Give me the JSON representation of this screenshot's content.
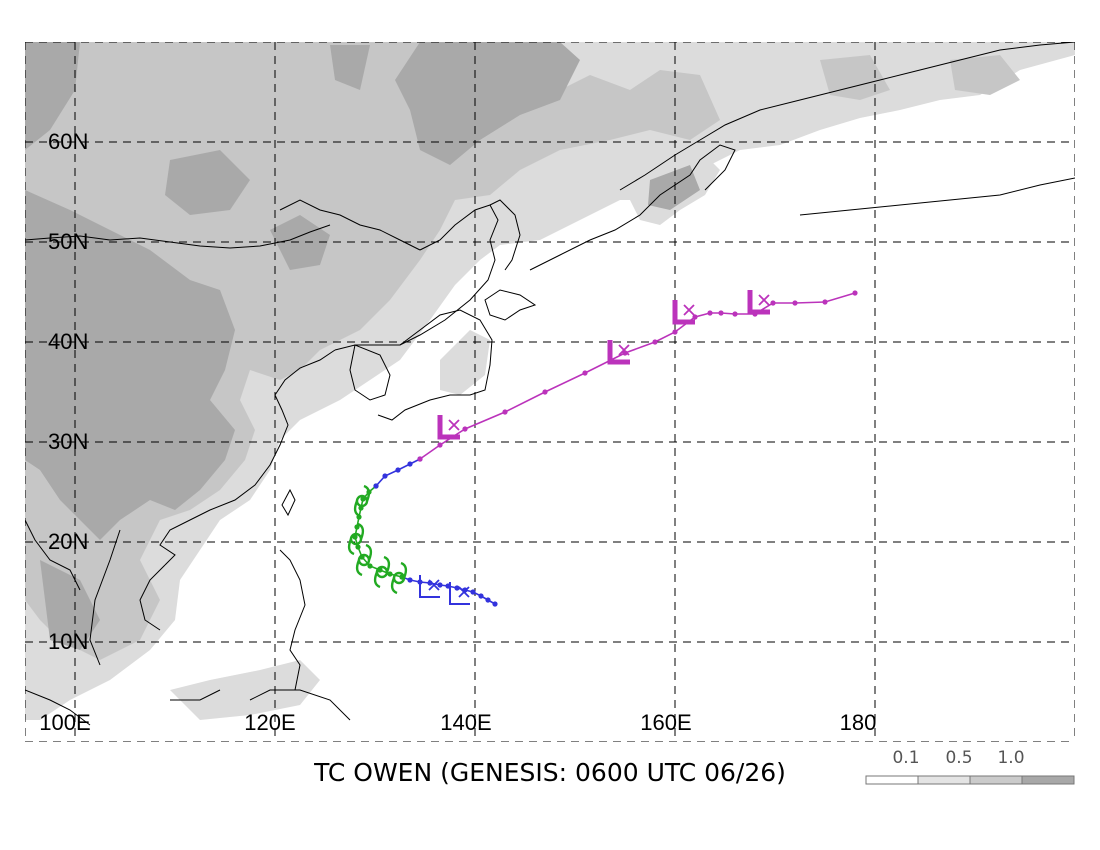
{
  "map": {
    "region": "Western North Pacific",
    "lat_labels": [
      "60N",
      "50N",
      "40N",
      "30N",
      "20N",
      "10N"
    ],
    "lon_labels": [
      "100E",
      "120E",
      "140E",
      "160E",
      "180"
    ],
    "caption": "TC OWEN (GENESIS: 0600 UTC 06/26)",
    "legend": {
      "labels": [
        "0.1",
        "0.5",
        "1.0"
      ],
      "colors": [
        "#ffffff",
        "#e4e4e4",
        "#cbcbcb",
        "#a8a8a8"
      ]
    },
    "track_colors": {
      "genesis": "#3333dd",
      "tropical": "#22aa22",
      "extratropical": "#bb33bb"
    },
    "track": {
      "early_blue": [
        [
          142.0,
          13.8
        ],
        [
          141.3,
          14.2
        ],
        [
          140.6,
          14.6
        ],
        [
          139.8,
          15.0
        ],
        [
          139.0,
          15.2
        ],
        [
          138.2,
          15.4
        ],
        [
          137.3,
          15.6
        ],
        [
          136.5,
          15.7
        ],
        [
          135.5,
          15.9
        ],
        [
          134.5,
          16.0
        ],
        [
          133.5,
          16.2
        ],
        [
          132.7,
          16.5
        ]
      ],
      "green": [
        [
          132.7,
          16.5
        ],
        [
          131.5,
          16.8
        ],
        [
          130.5,
          17.2
        ],
        [
          129.5,
          17.6
        ],
        [
          128.7,
          18.5
        ],
        [
          128.3,
          19.5
        ],
        [
          128.0,
          20.5
        ],
        [
          128.2,
          21.5
        ],
        [
          128.4,
          22.5
        ],
        [
          128.6,
          23.4
        ],
        [
          128.8,
          24.3
        ],
        [
          129.4,
          25.0
        ],
        [
          130.1,
          25.6
        ]
      ],
      "late_blue": [
        [
          130.1,
          25.6
        ],
        [
          131.0,
          26.6
        ],
        [
          132.3,
          27.2
        ],
        [
          133.5,
          27.8
        ],
        [
          134.5,
          28.3
        ]
      ],
      "magenta": [
        [
          134.5,
          28.3
        ],
        [
          136.5,
          29.7
        ],
        [
          139.0,
          31.3
        ],
        [
          143.0,
          33.0
        ],
        [
          147.0,
          35.0
        ],
        [
          151.0,
          36.9
        ],
        [
          155.0,
          38.9
        ],
        [
          158.0,
          40.0
        ],
        [
          160.0,
          41.0
        ],
        [
          162.0,
          42.5
        ],
        [
          163.5,
          42.9
        ],
        [
          164.6,
          42.9
        ],
        [
          166.0,
          42.8
        ],
        [
          168.0,
          42.8
        ],
        [
          169.8,
          43.9
        ],
        [
          172.0,
          43.9
        ],
        [
          175.0,
          44.0
        ],
        [
          178.0,
          44.9
        ]
      ]
    }
  }
}
